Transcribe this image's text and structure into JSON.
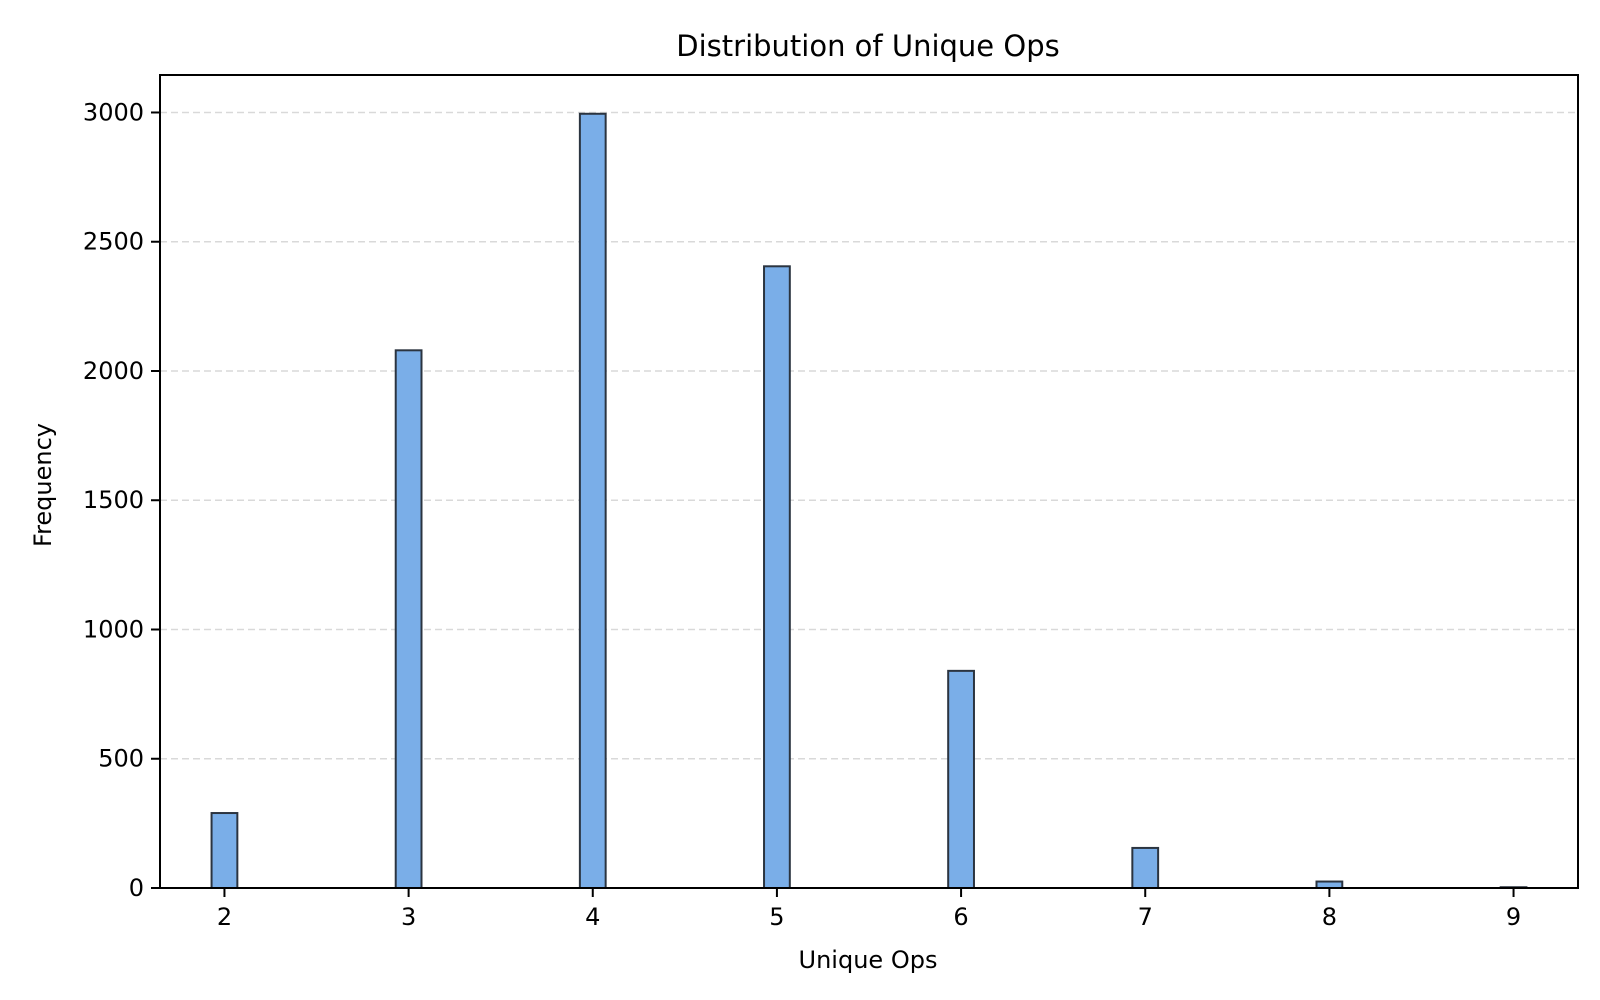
{
  "chart_data": {
    "type": "bar",
    "title": "Distribution of Unique Ops",
    "xlabel": "Unique Ops",
    "ylabel": "Frequency",
    "x": [
      2,
      3,
      4,
      5,
      6,
      7,
      8,
      9
    ],
    "values": [
      290,
      2080,
      2995,
      2405,
      840,
      155,
      25,
      3
    ],
    "xticks": [
      "2",
      "3",
      "4",
      "5",
      "6",
      "7",
      "8",
      "9"
    ],
    "yticks": [
      "0",
      "500",
      "1000",
      "1500",
      "2000",
      "2500",
      "3000"
    ],
    "xlim": [
      1.65,
      9.35
    ],
    "ylim": [
      0,
      3145
    ],
    "grid": "y-dashed",
    "colors": {
      "bar_fill": "#7aaee8",
      "bar_edge": "#2b3440",
      "grid": "#d9d9d9",
      "axis": "#000000"
    }
  }
}
